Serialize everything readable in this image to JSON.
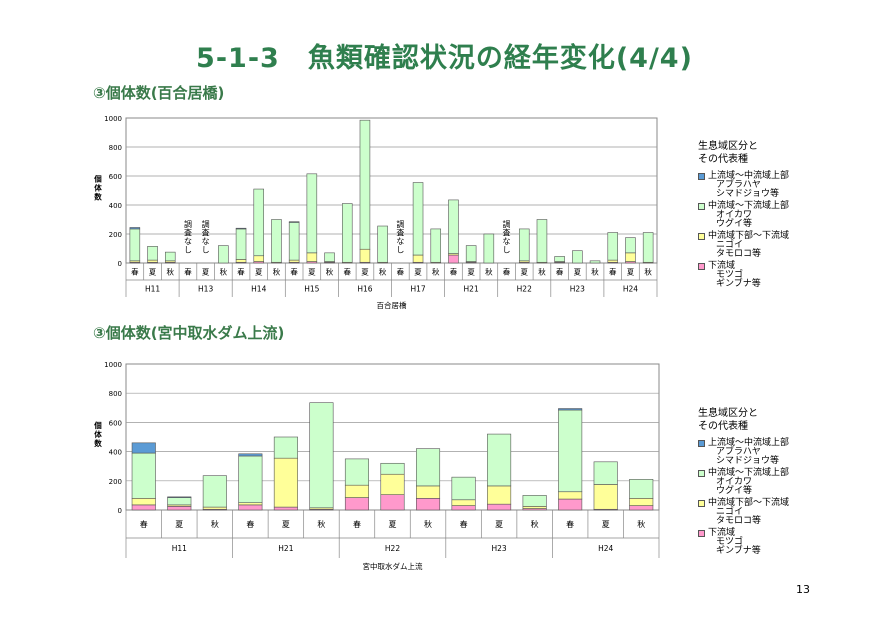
{
  "title": "5-1-3　魚類確認状況の経年変化(4/4)",
  "page_number": "13",
  "colors": {
    "s1": "#5b9bd5",
    "s2": "#ccffcc",
    "s3": "#ffff99",
    "s4": "#ff99cc",
    "title": "#2f7f4e"
  },
  "legend": {
    "title1": "生息域区分と",
    "title2": "その代表種",
    "items": [
      {
        "line1": "上流域～中流域上部",
        "line2": "アブラハヤ",
        "line3": "シマドジョウ等",
        "color": "#5b9bd5"
      },
      {
        "line1": "中流域～下流域上部",
        "line2": "オイカワ",
        "line3": "ウグイ等",
        "color": "#ccffcc"
      },
      {
        "line1": "中流域下部～下流域",
        "line2": "ニゴイ",
        "line3": "タモロコ等",
        "color": "#ffff99"
      },
      {
        "line1": "下流域",
        "line2": "モツゴ",
        "line3": "ギンブナ等",
        "color": "#ff99cc"
      }
    ]
  },
  "chart_data": [
    {
      "type": "bar",
      "subtitle": "③個体数(百合居橋)",
      "xlabel": "百合居橋",
      "ylabel": "個体数",
      "ylim": [
        0,
        1000
      ],
      "yticks": [
        0,
        200,
        400,
        600,
        800,
        1000
      ],
      "grid": true,
      "legend_position": "right",
      "not_surveyed_label": "調査なし",
      "groups": [
        {
          "year": "H11",
          "categories": [
            "春",
            "夏",
            "秋"
          ]
        },
        {
          "year": "H13",
          "categories": [
            "春",
            "夏",
            "秋"
          ]
        },
        {
          "year": "H14",
          "categories": [
            "春",
            "夏",
            "秋"
          ]
        },
        {
          "year": "H15",
          "categories": [
            "春",
            "夏",
            "秋"
          ]
        },
        {
          "year": "H16",
          "categories": [
            "春",
            "夏",
            "秋"
          ]
        },
        {
          "year": "H17",
          "categories": [
            "春",
            "夏",
            "秋"
          ]
        },
        {
          "year": "H21",
          "categories": [
            "春",
            "夏",
            "秋"
          ]
        },
        {
          "year": "H22",
          "categories": [
            "春",
            "夏",
            "秋"
          ]
        },
        {
          "year": "H23",
          "categories": [
            "春",
            "夏",
            "秋"
          ]
        },
        {
          "year": "H24",
          "categories": [
            "春",
            "夏",
            "秋"
          ]
        }
      ],
      "not_surveyed": [
        3,
        4,
        15,
        21
      ],
      "series": [
        {
          "name": "上流域～中流域上部",
          "values": [
            10,
            0,
            0,
            0,
            0,
            0,
            5,
            0,
            0,
            5,
            0,
            0,
            0,
            0,
            0,
            0,
            0,
            0,
            0,
            0,
            0,
            0,
            0,
            0,
            0,
            0,
            0,
            0,
            0,
            0
          ]
        },
        {
          "name": "中流域～下流域上部",
          "values": [
            220,
            95,
            60,
            0,
            0,
            120,
            210,
            460,
            295,
            260,
            545,
            60,
            405,
            890,
            250,
            0,
            500,
            230,
            370,
            110,
            200,
            0,
            220,
            295,
            35,
            85,
            15,
            190,
            105,
            205
          ]
        },
        {
          "name": "中流域下部～下流域",
          "values": [
            10,
            15,
            10,
            0,
            0,
            0,
            20,
            40,
            5,
            15,
            60,
            5,
            5,
            90,
            5,
            0,
            50,
            5,
            10,
            5,
            0,
            0,
            10,
            5,
            5,
            0,
            0,
            15,
            60,
            5
          ]
        },
        {
          "name": "下流域",
          "values": [
            5,
            5,
            5,
            0,
            0,
            0,
            5,
            10,
            0,
            5,
            10,
            5,
            0,
            5,
            0,
            0,
            5,
            0,
            55,
            5,
            0,
            0,
            5,
            0,
            5,
            0,
            0,
            5,
            10,
            0
          ]
        }
      ]
    },
    {
      "type": "bar",
      "subtitle": "③個体数(宮中取水ダム上流)",
      "xlabel": "宮中取水ダム上流",
      "ylabel": "個体数",
      "ylim": [
        0,
        1000
      ],
      "yticks": [
        0,
        200,
        400,
        600,
        800,
        1000
      ],
      "grid": true,
      "legend_position": "right",
      "groups": [
        {
          "year": "H11",
          "categories": [
            "春",
            "夏",
            "秋"
          ]
        },
        {
          "year": "H21",
          "categories": [
            "春",
            "夏",
            "秋"
          ]
        },
        {
          "year": "H22",
          "categories": [
            "春",
            "夏",
            "秋"
          ]
        },
        {
          "year": "H23",
          "categories": [
            "春",
            "夏",
            "秋"
          ]
        },
        {
          "year": "H24",
          "categories": [
            "春",
            "夏",
            "秋"
          ]
        }
      ],
      "series": [
        {
          "name": "上流域～中流域上部",
          "values": [
            70,
            5,
            0,
            15,
            0,
            0,
            0,
            0,
            0,
            0,
            0,
            0,
            10,
            0,
            0
          ]
        },
        {
          "name": "中流域～下流域上部",
          "values": [
            310,
            50,
            215,
            320,
            145,
            720,
            180,
            75,
            255,
            155,
            355,
            75,
            560,
            155,
            130
          ]
        },
        {
          "name": "中流域下部～下流域",
          "values": [
            45,
            10,
            15,
            15,
            335,
            10,
            85,
            140,
            85,
            40,
            125,
            15,
            50,
            170,
            50
          ]
        },
        {
          "name": "下流域",
          "values": [
            35,
            25,
            5,
            35,
            20,
            5,
            85,
            105,
            80,
            30,
            40,
            10,
            75,
            5,
            30
          ]
        }
      ]
    }
  ]
}
